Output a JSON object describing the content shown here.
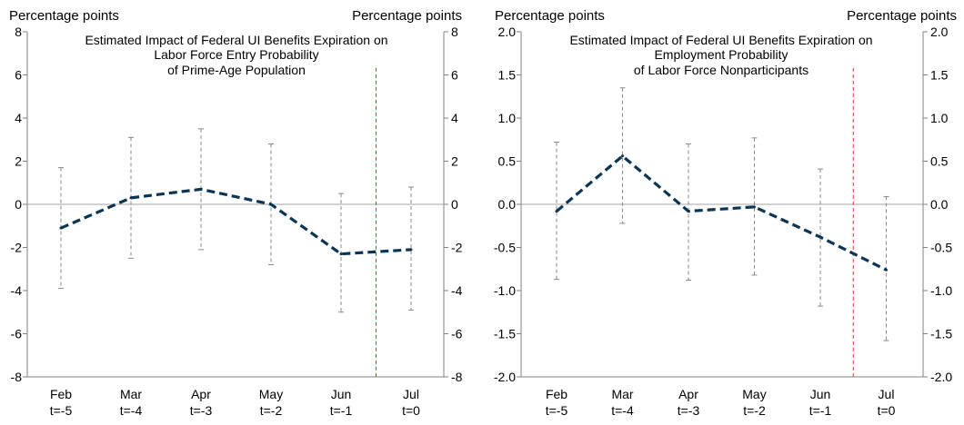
{
  "chart_data": [
    {
      "type": "line",
      "title": [
        "Estimated Impact of Federal UI Benefits Expiration on",
        "Labor Force Entry Probability",
        "of Prime-Age Population"
      ],
      "left_axis_label": "Percentage points",
      "right_axis_label": "Percentage points",
      "categories": [
        {
          "month": "Feb",
          "t": "t=-5"
        },
        {
          "month": "Mar",
          "t": "t=-4"
        },
        {
          "month": "Apr",
          "t": "t=-3"
        },
        {
          "month": "May",
          "t": "t=-2"
        },
        {
          "month": "Jun",
          "t": "t=-1"
        },
        {
          "month": "Jul",
          "t": "t=0"
        }
      ],
      "values": [
        -1.1,
        0.3,
        0.7,
        0.0,
        -2.3,
        -2.1
      ],
      "ci_upper": [
        1.7,
        3.1,
        3.5,
        2.8,
        0.5,
        0.8
      ],
      "ci_lower": [
        -3.9,
        -2.5,
        -2.1,
        -2.8,
        -5.0,
        -4.9
      ],
      "ylim": [
        -8,
        8
      ],
      "ticks": [
        -8,
        -6,
        -4,
        -2,
        0,
        2,
        4,
        6,
        8
      ],
      "tick_labels": [
        "-8",
        "-6",
        "-4",
        "-2",
        "0",
        "2",
        "4",
        "6",
        "8"
      ],
      "expiration_marker_between": [
        4,
        5
      ],
      "series_color": "#0d3553",
      "ci_color": "#8a8a8a",
      "marker_color": "#d9383a"
    },
    {
      "type": "line",
      "title": [
        "Estimated Impact of Federal UI Benefits Expiration on",
        "Employment Probability",
        "of Labor Force Nonparticipants"
      ],
      "left_axis_label": "Percentage points",
      "right_axis_label": "Percentage points",
      "categories": [
        {
          "month": "Feb",
          "t": "t=-5"
        },
        {
          "month": "Mar",
          "t": "t=-4"
        },
        {
          "month": "Apr",
          "t": "t=-3"
        },
        {
          "month": "May",
          "t": "t=-2"
        },
        {
          "month": "Jun",
          "t": "t=-1"
        },
        {
          "month": "Jul",
          "t": "t=0"
        }
      ],
      "values": [
        -0.08,
        0.56,
        -0.08,
        -0.03,
        -0.38,
        -0.76
      ],
      "ci_upper": [
        0.72,
        1.35,
        0.7,
        0.77,
        0.41,
        0.09
      ],
      "ci_lower": [
        -0.87,
        -0.22,
        -0.88,
        -0.82,
        -1.18,
        -1.58
      ],
      "ylim": [
        -2.0,
        2.0
      ],
      "ticks": [
        -2.0,
        -1.5,
        -1.0,
        -0.5,
        0.0,
        0.5,
        1.0,
        1.5,
        2.0
      ],
      "tick_labels": [
        "-2.0",
        "-1.5",
        "-1.0",
        "-0.5",
        "0.0",
        "0.5",
        "1.0",
        "1.5",
        "2.0"
      ],
      "expiration_marker_between": [
        4,
        5
      ],
      "series_color": "#0d3553",
      "ci_color": "#8a8a8a",
      "marker_color": "#d9383a"
    }
  ]
}
